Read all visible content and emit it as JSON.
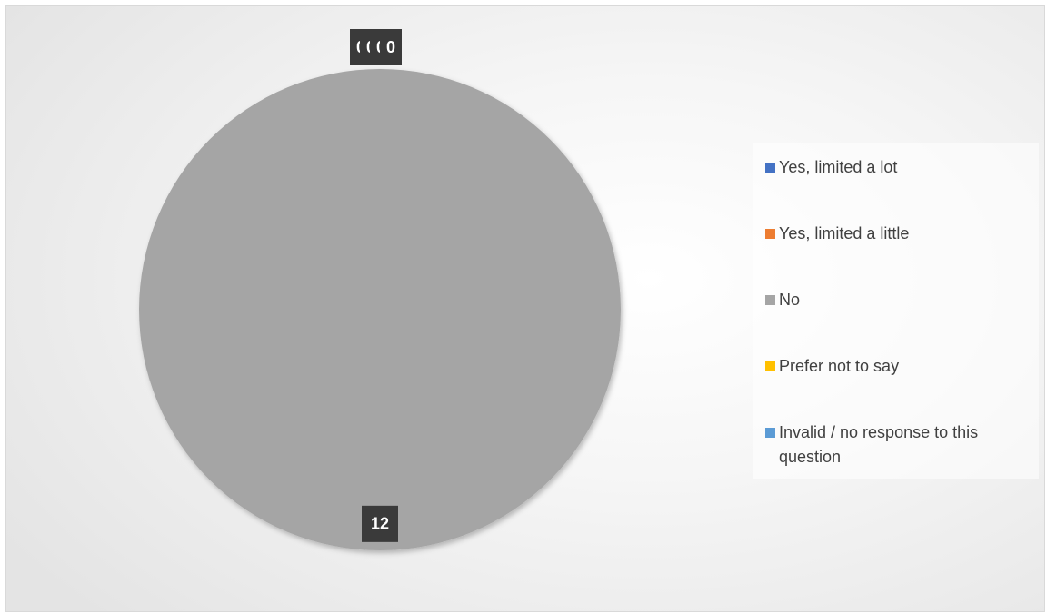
{
  "chart_data": {
    "type": "pie",
    "categories": [
      "Yes, limited a lot",
      "Yes, limited a little",
      "No",
      "Prefer not to say",
      "Invalid / no response to this question"
    ],
    "values": [
      0,
      0,
      12,
      0,
      0
    ],
    "colors": [
      "#4472c4",
      "#ed7d31",
      "#a5a5a5",
      "#ffc000",
      "#5b9bd5"
    ],
    "legend": "right"
  }
}
